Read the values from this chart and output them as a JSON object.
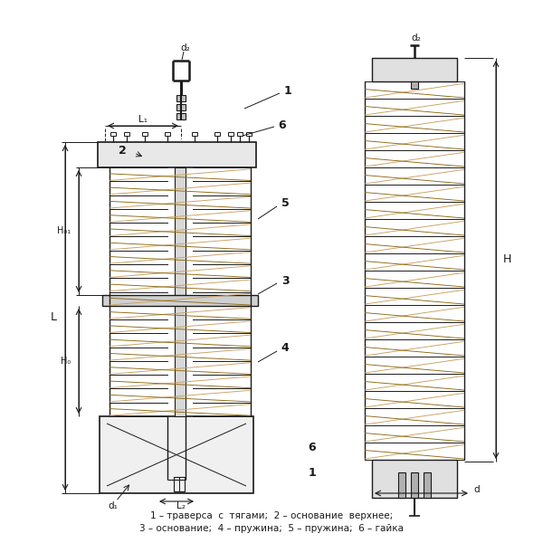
{
  "bg_color": "#ffffff",
  "line_color": "#1a1a1a",
  "spring_color": "#c8a060",
  "spring_dark": "#8b6914",
  "dim_color": "#1a1a1a",
  "caption_line1": "1 – траверса  с  тягами;  2 – основание  верхнее;",
  "caption_line2": "3 – основание;  4 – пружина;  5 – пружина;  6 – гайка",
  "label_1": "1",
  "label_2": "2",
  "label_3": "3",
  "label_4": "4",
  "label_5": "5",
  "label_6": "6",
  "label_d1": "d₁",
  "label_d2": "d₂",
  "label_d": "d",
  "label_L": "L",
  "label_L1": "L₁",
  "label_L2": "L₂",
  "label_H": "H",
  "label_H01": "H₀₁",
  "label_H0": "H₀"
}
